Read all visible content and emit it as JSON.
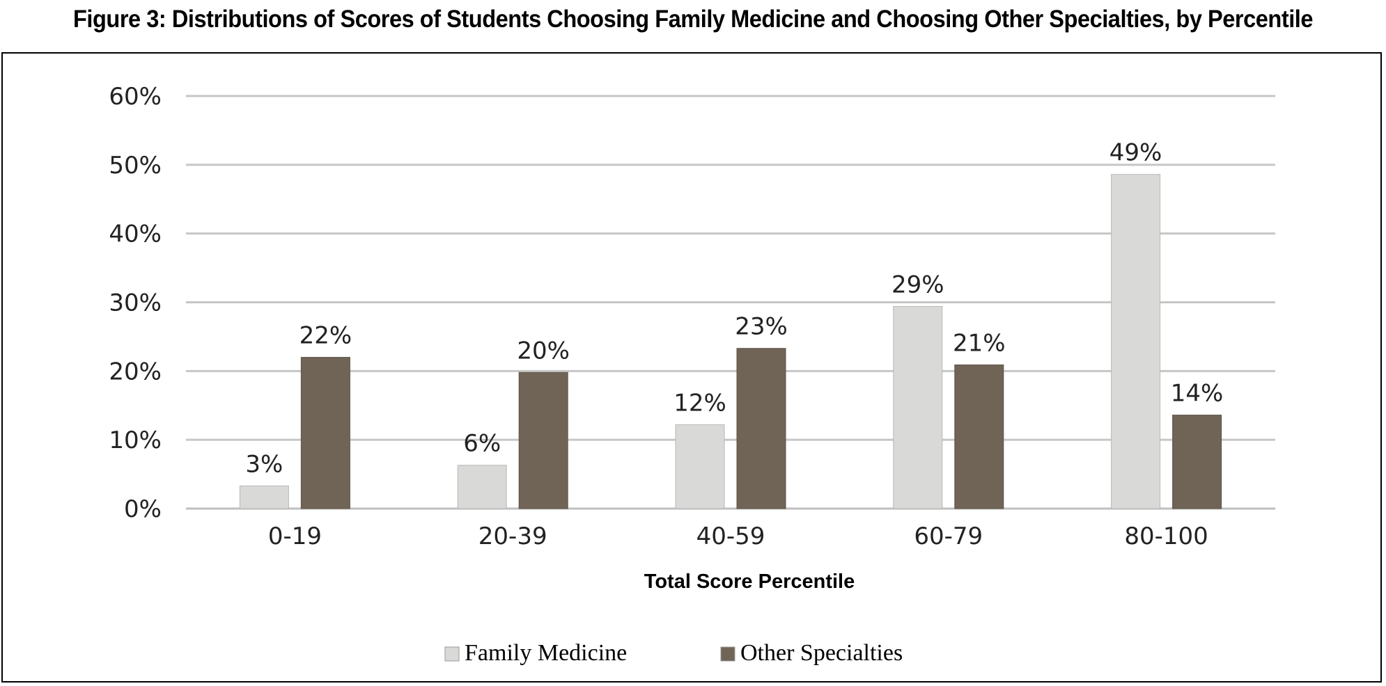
{
  "figure": {
    "title": "Figure 3: Distributions of Scores of Students Choosing Family Medicine and Choosing Other Specialties, by Percentile"
  },
  "colors": {
    "family_medicine": "#d9d9d7",
    "other_specialties": "#706457",
    "gridline": "#c6c6c6",
    "axis": "#bfbfbf"
  },
  "chart_data": {
    "type": "bar",
    "title": "Figure 3: Distributions of Scores of Students Choosing Family Medicine and Choosing Other Specialties, by Percentile",
    "xlabel": "Total Score Percentile",
    "ylabel": "",
    "categories": [
      "0-19",
      "20-39",
      "40-59",
      "60-79",
      "80-100"
    ],
    "series": [
      {
        "name": "Family Medicine",
        "values": [
          3.3,
          6.3,
          12.2,
          29.4,
          48.6
        ],
        "labels": [
          "3%",
          "6%",
          "12%",
          "29%",
          "49%"
        ]
      },
      {
        "name": "Other Specialties",
        "values": [
          22.0,
          19.8,
          23.3,
          20.9,
          13.6
        ],
        "labels": [
          "22%",
          "20%",
          "23%",
          "21%",
          "14%"
        ]
      }
    ],
    "ylim": [
      0,
      60
    ],
    "yticks": [
      0,
      10,
      20,
      30,
      40,
      50,
      60
    ],
    "ytick_labels": [
      "0%",
      "10%",
      "20%",
      "30%",
      "40%",
      "50%",
      "60%"
    ],
    "grid": true,
    "legend_position": "bottom-center"
  }
}
